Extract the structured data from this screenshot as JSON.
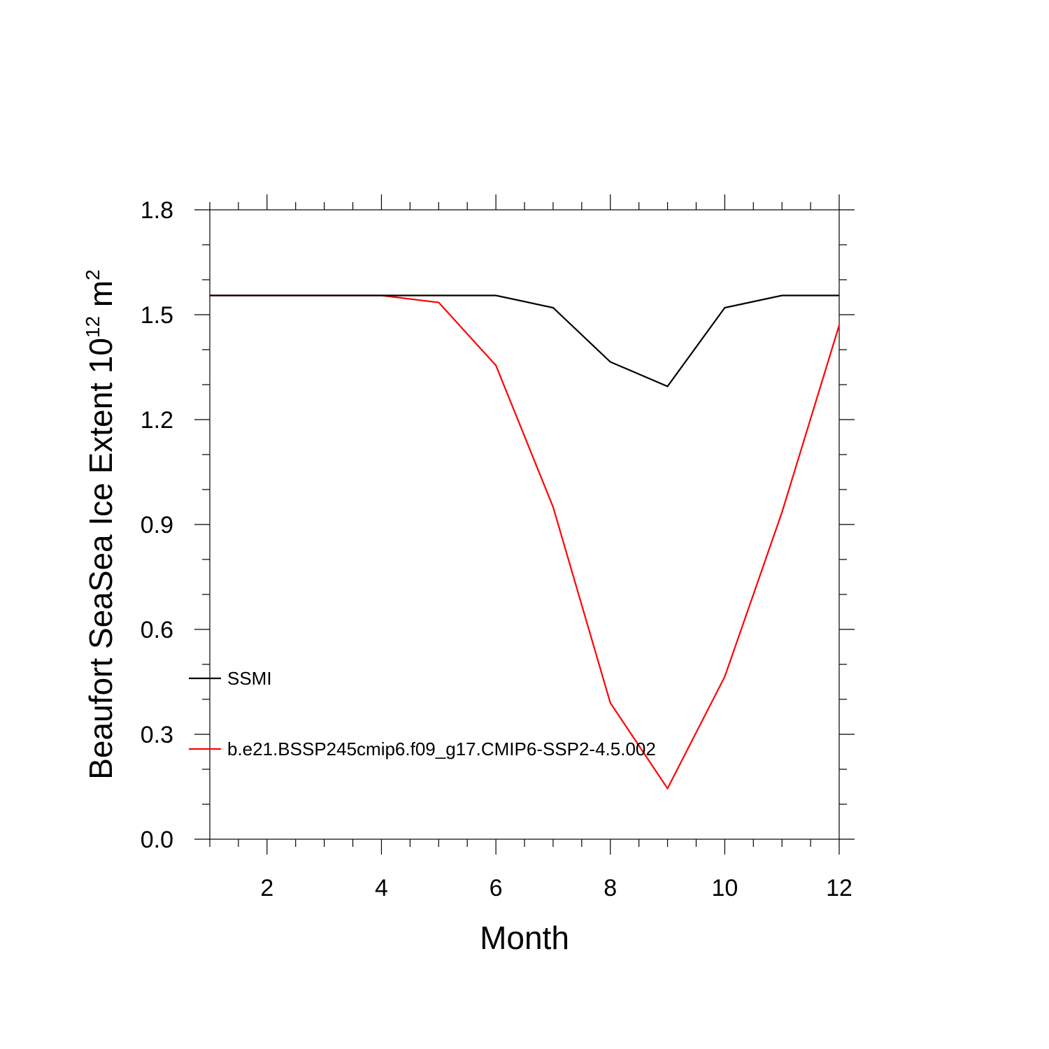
{
  "chart_data": {
    "type": "line",
    "title": "",
    "xlabel": "Month",
    "ylabel": {
      "prefix": "Beaufort SeaSea Ice Extent 10",
      "superscript1": "12",
      "middle": " m",
      "superscript2": "2"
    },
    "xlim": [
      1,
      12
    ],
    "ylim": [
      0.0,
      1.8
    ],
    "xticks": [
      2,
      4,
      6,
      8,
      10,
      12
    ],
    "yticks": [
      "0.0",
      "0.3",
      "0.6",
      "0.9",
      "1.2",
      "1.5",
      "1.8"
    ],
    "grid": false,
    "legend_position": "left, inside plot",
    "x": [
      1,
      2,
      3,
      4,
      5,
      6,
      7,
      8,
      9,
      10,
      11,
      12
    ],
    "series": [
      {
        "name": "SSMI",
        "color": "#000000",
        "values": [
          1.555,
          1.555,
          1.555,
          1.555,
          1.555,
          1.555,
          1.52,
          1.365,
          1.295,
          1.52,
          1.555,
          1.555
        ]
      },
      {
        "name": "b.e21.BSSP245cmip6.f09_g17.CMIP6-SSP2-4.5.002",
        "color": "#ff0000",
        "values": [
          1.555,
          1.555,
          1.555,
          1.555,
          1.535,
          1.355,
          0.95,
          0.39,
          0.145,
          0.465,
          0.935,
          1.47
        ]
      }
    ]
  }
}
